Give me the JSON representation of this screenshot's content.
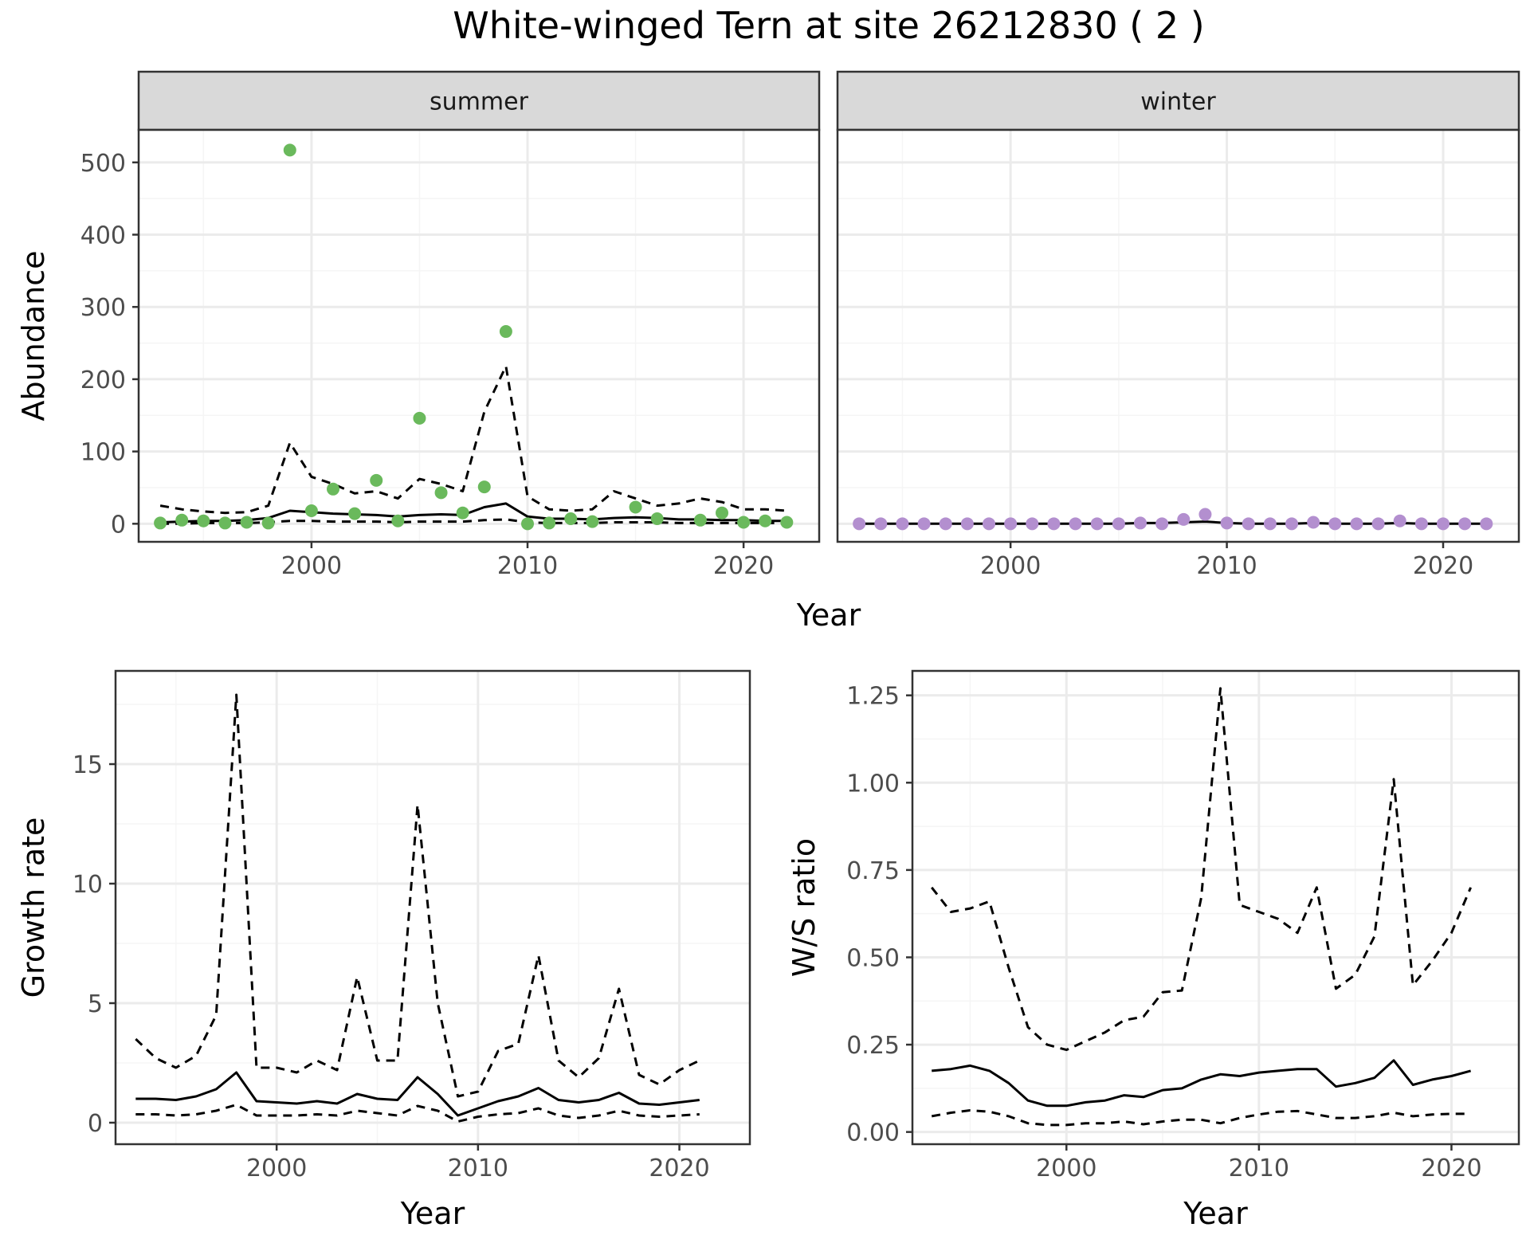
{
  "title": "White-winged Tern at site 26212830 ( 2 )",
  "colors": {
    "summer": "#6ab95c",
    "winter": "#b38fcf",
    "line": "#000000",
    "grid_major": "#ebebeb",
    "grid_minor": "#f5f5f5",
    "strip_bg": "#d9d9d9",
    "panel_border": "#333333"
  },
  "chart_data": [
    {
      "id": "abundance",
      "type": "scatter",
      "ylabel": "Abundance",
      "xlabel": "Year",
      "xlim": [
        1992,
        2023.5
      ],
      "ylim": [
        -25,
        545
      ],
      "xticks": [
        2000,
        2010,
        2020
      ],
      "yticks": [
        0,
        100,
        200,
        300,
        400,
        500
      ],
      "grid": true,
      "facets": [
        {
          "strip": "summer",
          "color_key": "summer",
          "points": {
            "x": [
              1993,
              1994,
              1995,
              1996,
              1997,
              1998,
              1999,
              2000,
              2001,
              2002,
              2003,
              2004,
              2005,
              2006,
              2007,
              2008,
              2009,
              2010,
              2011,
              2012,
              2013,
              2015,
              2016,
              2018,
              2019,
              2020,
              2021,
              2022
            ],
            "y": [
              1,
              5,
              4,
              1,
              2,
              1,
              517,
              18,
              48,
              14,
              60,
              4,
              146,
              43,
              15,
              51,
              266,
              0,
              1,
              7,
              3,
              23,
              7,
              5,
              15,
              2,
              4,
              2
            ]
          },
          "fit": {
            "x": [
              1993,
              1994,
              1995,
              1996,
              1997,
              1998,
              1999,
              2000,
              2001,
              2002,
              2003,
              2004,
              2005,
              2006,
              2007,
              2008,
              2009,
              2010,
              2011,
              2012,
              2013,
              2014,
              2015,
              2016,
              2017,
              2018,
              2019,
              2020,
              2021,
              2022
            ],
            "y": [
              2,
              3,
              4,
              4,
              5,
              8,
              18,
              16,
              14,
              13,
              12,
              10,
              12,
              13,
              12,
              23,
              28,
              10,
              7,
              7,
              6,
              8,
              9,
              8,
              6,
              6,
              5,
              5,
              4,
              4
            ]
          },
          "lower": {
            "x": [
              1993,
              1994,
              1995,
              1996,
              1997,
              1998,
              1999,
              2000,
              2001,
              2002,
              2003,
              2004,
              2005,
              2006,
              2007,
              2008,
              2009,
              2010,
              2011,
              2012,
              2013,
              2014,
              2015,
              2016,
              2017,
              2018,
              2019,
              2020,
              2021,
              2022
            ],
            "y": [
              0,
              0,
              1,
              1,
              1,
              2,
              4,
              4,
              3,
              3,
              3,
              2,
              3,
              3,
              3,
              5,
              6,
              2,
              1,
              1,
              1,
              2,
              2,
              2,
              1,
              1,
              1,
              1,
              1,
              1
            ]
          },
          "upper": {
            "x": [
              1993,
              1994,
              1995,
              1996,
              1997,
              1998,
              1999,
              2000,
              2001,
              2002,
              2003,
              2004,
              2005,
              2006,
              2007,
              2008,
              2009,
              2010,
              2011,
              2012,
              2013,
              2014,
              2015,
              2016,
              2017,
              2018,
              2019,
              2020,
              2021,
              2022
            ],
            "y": [
              25,
              20,
              17,
              15,
              16,
              25,
              112,
              65,
              55,
              42,
              45,
              35,
              62,
              55,
              45,
              155,
              218,
              38,
              20,
              18,
              20,
              45,
              35,
              25,
              28,
              35,
              30,
              20,
              20,
              18
            ]
          }
        },
        {
          "strip": "winter",
          "color_key": "winter",
          "points": {
            "x": [
              1993,
              1994,
              1995,
              1996,
              1997,
              1998,
              1999,
              2000,
              2001,
              2002,
              2003,
              2004,
              2005,
              2006,
              2007,
              2008,
              2009,
              2010,
              2011,
              2012,
              2013,
              2014,
              2015,
              2016,
              2017,
              2018,
              2019,
              2020,
              2021,
              2022
            ],
            "y": [
              0,
              0,
              0,
              0,
              0,
              0,
              0,
              0,
              0,
              0,
              0,
              0,
              0,
              1,
              0,
              6,
              13,
              1,
              0,
              0,
              0,
              2,
              0,
              0,
              0,
              4,
              0,
              0,
              0,
              0
            ]
          },
          "fit": {
            "x": [
              1993,
              1994,
              1995,
              1996,
              1997,
              1998,
              1999,
              2000,
              2001,
              2002,
              2003,
              2004,
              2005,
              2006,
              2007,
              2008,
              2009,
              2010,
              2011,
              2012,
              2013,
              2014,
              2015,
              2016,
              2017,
              2018,
              2019,
              2020,
              2021,
              2022
            ],
            "y": [
              0,
              0,
              0,
              0,
              0,
              0,
              0,
              0,
              0,
              0,
              0,
              0,
              0,
              1,
              1,
              2,
              3,
              1,
              0,
              0,
              0,
              1,
              0,
              0,
              0,
              1,
              0,
              0,
              0,
              0
            ]
          }
        }
      ]
    },
    {
      "id": "growth",
      "type": "line",
      "ylabel": "Growth rate",
      "xlabel": "Year",
      "xlim": [
        1992,
        2023.5
      ],
      "ylim": [
        -0.9,
        18.9
      ],
      "xticks": [
        2000,
        2010,
        2020
      ],
      "yticks": [
        0,
        5,
        10,
        15
      ],
      "grid": true,
      "series": [
        {
          "style": "solid",
          "x": [
            1993,
            1994,
            1995,
            1996,
            1997,
            1998,
            1999,
            2000,
            2001,
            2002,
            2003,
            2004,
            2005,
            2006,
            2007,
            2008,
            2009,
            2010,
            2011,
            2012,
            2013,
            2014,
            2015,
            2016,
            2017,
            2018,
            2019,
            2020,
            2021
          ],
          "y": [
            1.0,
            1.0,
            0.95,
            1.1,
            1.4,
            2.1,
            0.9,
            0.85,
            0.8,
            0.9,
            0.8,
            1.2,
            1.0,
            0.95,
            1.9,
            1.2,
            0.3,
            0.6,
            0.9,
            1.1,
            1.45,
            0.95,
            0.85,
            0.95,
            1.25,
            0.8,
            0.75,
            0.85,
            0.95
          ]
        },
        {
          "style": "dashed",
          "x": [
            1993,
            1994,
            1995,
            1996,
            1997,
            1998,
            1999,
            2000,
            2001,
            2002,
            2003,
            2004,
            2005,
            2006,
            2007,
            2008,
            2009,
            2010,
            2011,
            2012,
            2013,
            2014,
            2015,
            2016,
            2017,
            2018,
            2019,
            2020,
            2021
          ],
          "y": [
            3.5,
            2.7,
            2.3,
            2.8,
            4.5,
            17.9,
            2.3,
            2.3,
            2.1,
            2.6,
            2.2,
            6.1,
            2.6,
            2.6,
            13.3,
            5.0,
            1.1,
            1.3,
            3.0,
            3.3,
            7.0,
            2.6,
            1.9,
            2.7,
            5.6,
            2.0,
            1.6,
            2.2,
            2.6
          ]
        },
        {
          "style": "dashed",
          "x": [
            1993,
            1994,
            1995,
            1996,
            1997,
            1998,
            1999,
            2000,
            2001,
            2002,
            2003,
            2004,
            2005,
            2006,
            2007,
            2008,
            2009,
            2010,
            2011,
            2012,
            2013,
            2014,
            2015,
            2016,
            2017,
            2018,
            2019,
            2020,
            2021
          ],
          "y": [
            0.35,
            0.35,
            0.3,
            0.35,
            0.5,
            0.75,
            0.3,
            0.3,
            0.3,
            0.35,
            0.3,
            0.5,
            0.4,
            0.3,
            0.7,
            0.5,
            0.05,
            0.25,
            0.35,
            0.4,
            0.6,
            0.3,
            0.2,
            0.3,
            0.5,
            0.3,
            0.25,
            0.3,
            0.35
          ]
        }
      ]
    },
    {
      "id": "ws_ratio",
      "type": "line",
      "ylabel": "W/S ratio",
      "xlabel": "Year",
      "xlim": [
        1992,
        2023.5
      ],
      "ylim": [
        -0.035,
        1.32
      ],
      "xticks": [
        2000,
        2010,
        2020
      ],
      "yticks": [
        0.0,
        0.25,
        0.5,
        0.75,
        1.0,
        1.25
      ],
      "ytick_labels": [
        "0.00",
        "0.25",
        "0.50",
        "0.75",
        "1.00",
        "1.25"
      ],
      "grid": true,
      "series": [
        {
          "style": "solid",
          "x": [
            1993,
            1994,
            1995,
            1996,
            1997,
            1998,
            1999,
            2000,
            2001,
            2002,
            2003,
            2004,
            2005,
            2006,
            2007,
            2008,
            2009,
            2010,
            2011,
            2012,
            2013,
            2014,
            2015,
            2016,
            2017,
            2018,
            2019,
            2020,
            2021
          ],
          "y": [
            0.175,
            0.18,
            0.19,
            0.175,
            0.14,
            0.09,
            0.075,
            0.075,
            0.085,
            0.09,
            0.105,
            0.1,
            0.12,
            0.125,
            0.15,
            0.165,
            0.16,
            0.17,
            0.175,
            0.18,
            0.18,
            0.13,
            0.14,
            0.155,
            0.205,
            0.135,
            0.15,
            0.16,
            0.175
          ]
        },
        {
          "style": "dashed",
          "x": [
            1993,
            1994,
            1995,
            1996,
            1997,
            1998,
            1999,
            2000,
            2001,
            2002,
            2003,
            2004,
            2005,
            2006,
            2007,
            2008,
            2009,
            2010,
            2011,
            2012,
            2013,
            2014,
            2015,
            2016,
            2017,
            2018,
            2019,
            2020,
            2021
          ],
          "y": [
            0.7,
            0.63,
            0.64,
            0.66,
            0.47,
            0.3,
            0.25,
            0.235,
            0.26,
            0.285,
            0.32,
            0.33,
            0.4,
            0.405,
            0.67,
            1.27,
            0.65,
            0.63,
            0.61,
            0.57,
            0.7,
            0.41,
            0.45,
            0.56,
            1.01,
            0.42,
            0.49,
            0.57,
            0.7
          ]
        },
        {
          "style": "dashed",
          "x": [
            1993,
            1994,
            1995,
            1996,
            1997,
            1998,
            1999,
            2000,
            2001,
            2002,
            2003,
            2004,
            2005,
            2006,
            2007,
            2008,
            2009,
            2010,
            2011,
            2012,
            2013,
            2014,
            2015,
            2016,
            2017,
            2018,
            2019,
            2020,
            2021
          ],
          "y": [
            0.045,
            0.055,
            0.062,
            0.058,
            0.045,
            0.025,
            0.02,
            0.02,
            0.025,
            0.025,
            0.03,
            0.022,
            0.03,
            0.035,
            0.035,
            0.025,
            0.04,
            0.05,
            0.058,
            0.06,
            0.05,
            0.04,
            0.04,
            0.045,
            0.055,
            0.045,
            0.05,
            0.052,
            0.052
          ]
        }
      ]
    }
  ]
}
